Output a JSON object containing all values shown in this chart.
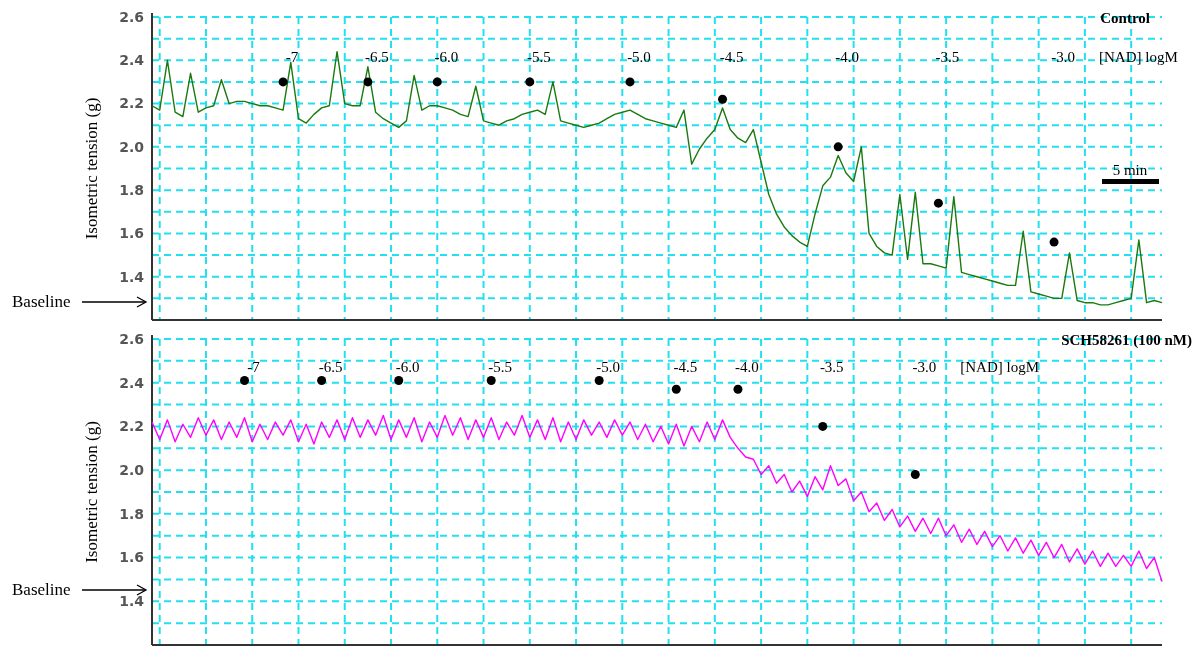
{
  "chart_data": [
    {
      "type": "line",
      "title": "Control",
      "ylabel": "Isometric  tension (g)",
      "categories": [
        null,
        null,
        null,
        null,
        null,
        null,
        null,
        null,
        null,
        null,
        null,
        null,
        null,
        null,
        null,
        null,
        null,
        null,
        null,
        null,
        null,
        null,
        null,
        null,
        null,
        null,
        null,
        null,
        null,
        null,
        null,
        null,
        null,
        null,
        null,
        null,
        null,
        null,
        null,
        null,
        null,
        null,
        null,
        null,
        null,
        null,
        null,
        null,
        null,
        null,
        null,
        null,
        null,
        null,
        null,
        null,
        null,
        null,
        null,
        null,
        null,
        null,
        null,
        null,
        null,
        null,
        null,
        null,
        null,
        null,
        null,
        null,
        null,
        null,
        null,
        null,
        null,
        null,
        null,
        null,
        null,
        null,
        null,
        null,
        null,
        null,
        null,
        null,
        null,
        null,
        null,
        null,
        null,
        null,
        null,
        null,
        null,
        null,
        null,
        null,
        null,
        null,
        null,
        null,
        null,
        null,
        null,
        null,
        null,
        null,
        null,
        null,
        null,
        null,
        null,
        null,
        null,
        null,
        null,
        null,
        null,
        null,
        null,
        null,
        null,
        null,
        null,
        null,
        null,
        null,
        null,
        null
      ],
      "ylim": [
        1.2,
        2.6
      ],
      "yticks": [
        {
          "value": 1.3,
          "label": null
        },
        1.4,
        {
          "value": 1.5,
          "label": null
        },
        1.6,
        {
          "value": 1.7,
          "label": null
        },
        1.8,
        {
          "value": 1.9,
          "label": null
        },
        {
          "value": 2,
          "label": "2.0"
        },
        {
          "value": 2.1,
          "label": null
        },
        2.2,
        {
          "value": 2.3,
          "label": null
        },
        2.4,
        {
          "value": 2.5,
          "label": null
        },
        2.6
      ],
      "grid": true,
      "annotations": [
        "-7",
        "-6.5",
        "-6.0",
        "-5.5",
        "-5.0",
        "-4.5",
        "-4.0",
        "-3.5",
        "-3.0",
        "[NAD] logM",
        "5 min",
        "Baseline"
      ],
      "series": [
        {
          "color": "#1a7a10",
          "values": [
            2.19,
            2.17,
            2.4,
            2.16,
            2.14,
            2.34,
            2.16,
            2.18,
            2.19,
            2.31,
            2.2,
            2.21,
            2.21,
            2.2,
            2.19,
            2.19,
            2.18,
            2.17,
            2.39,
            2.13,
            2.11,
            2.15,
            2.18,
            2.19,
            2.44,
            2.2,
            2.19,
            2.19,
            2.37,
            2.16,
            2.13,
            2.11,
            2.09,
            2.12,
            2.33,
            2.17,
            2.19,
            2.19,
            2.18,
            2.17,
            2.15,
            2.14,
            2.28,
            2.12,
            2.11,
            2.1,
            2.12,
            2.13,
            2.15,
            2.16,
            2.17,
            2.15,
            2.3,
            2.12,
            2.11,
            2.1,
            2.09,
            2.1,
            2.11,
            2.13,
            2.15,
            2.16,
            2.17,
            2.15,
            2.13,
            2.12,
            2.11,
            2.1,
            2.09,
            2.17,
            1.92,
            1.99,
            2.04,
            2.08,
            2.18,
            2.08,
            2.04,
            2.02,
            2.08,
            1.93,
            1.78,
            1.69,
            1.63,
            1.59,
            1.56,
            1.54,
            1.69,
            1.82,
            1.86,
            1.96,
            1.88,
            1.84,
            2.0,
            1.6,
            1.54,
            1.51,
            1.5,
            1.78,
            1.48,
            1.79,
            1.46,
            1.46,
            1.45,
            1.44,
            1.77,
            1.42,
            1.41,
            1.4,
            1.39,
            1.38,
            1.37,
            1.36,
            1.36,
            1.61,
            1.33,
            1.32,
            1.31,
            1.3,
            1.3,
            1.51,
            1.29,
            1.28,
            1.28,
            1.27,
            1.27,
            1.28,
            1.29,
            1.3,
            1.57,
            1.28,
            1.29,
            1.28
          ]
        },
        {
          "type": "scatter",
          "color": "#000000",
          "marker": "circle",
          "values": [
            null,
            null,
            null,
            null,
            null,
            null,
            null,
            null,
            null,
            null,
            null,
            null,
            null,
            null,
            null,
            null,
            null,
            2.3,
            null,
            null,
            null,
            null,
            null,
            null,
            null,
            null,
            null,
            null,
            2.3,
            null,
            null,
            null,
            null,
            null,
            null,
            null,
            null,
            2.3,
            null,
            null,
            null,
            null,
            null,
            null,
            null,
            null,
            null,
            null,
            null,
            2.3,
            null,
            null,
            null,
            null,
            null,
            null,
            null,
            null,
            null,
            null,
            null,
            null,
            2.3,
            null,
            null,
            null,
            null,
            null,
            null,
            null,
            null,
            null,
            null,
            null,
            2.22,
            null,
            null,
            null,
            null,
            null,
            null,
            null,
            null,
            null,
            null,
            null,
            null,
            null,
            null,
            2.0,
            null,
            null,
            null,
            null,
            null,
            null,
            null,
            null,
            null,
            null,
            null,
            null,
            1.74,
            null,
            null,
            null,
            null,
            null,
            null,
            null,
            null,
            null,
            null,
            null,
            null,
            null,
            null,
            1.56,
            null,
            null,
            null,
            null,
            null,
            null,
            null,
            null,
            null,
            null,
            null,
            null,
            null,
            null
          ]
        }
      ]
    },
    {
      "type": "line",
      "title": "SCH58261  (100 nM)",
      "ylabel": "Isometric  tension (g)",
      "categories": [
        null,
        null,
        null,
        null,
        null,
        null,
        null,
        null,
        null,
        null,
        null,
        null,
        null,
        null,
        null,
        null,
        null,
        null,
        null,
        null,
        null,
        null,
        null,
        null,
        null,
        null,
        null,
        null,
        null,
        null,
        null,
        null,
        null,
        null,
        null,
        null,
        null,
        null,
        null,
        null,
        null,
        null,
        null,
        null,
        null,
        null,
        null,
        null,
        null,
        null,
        null,
        null,
        null,
        null,
        null,
        null,
        null,
        null,
        null,
        null,
        null,
        null,
        null,
        null,
        null,
        null,
        null,
        null,
        null,
        null,
        null,
        null,
        null,
        null,
        null,
        null,
        null,
        null,
        null,
        null,
        null,
        null,
        null,
        null,
        null,
        null,
        null,
        null,
        null,
        null,
        null,
        null,
        null,
        null,
        null,
        null,
        null,
        null,
        null,
        null,
        null,
        null,
        null,
        null,
        null,
        null,
        null,
        null,
        null,
        null,
        null,
        null,
        null,
        null,
        null,
        null,
        null,
        null,
        null,
        null,
        null,
        null,
        null,
        null,
        null,
        null,
        null,
        null,
        null,
        null,
        null,
        null
      ],
      "ylim": [
        1.2,
        2.6
      ],
      "yticks": [
        {
          "value": 1.3,
          "label": null
        },
        1.4,
        {
          "value": 1.5,
          "label": null
        },
        1.6,
        {
          "value": 1.7,
          "label": null
        },
        1.8,
        {
          "value": 1.9,
          "label": null
        },
        {
          "value": 2,
          "label": "2.0"
        },
        {
          "value": 2.1,
          "label": null
        },
        2.2,
        {
          "value": 2.3,
          "label": null
        },
        2.4,
        {
          "value": 2.5,
          "label": null
        },
        2.6
      ],
      "grid": true,
      "annotations": [
        "-7",
        "-6.5",
        "-6.0",
        "-5.5",
        "-5.0",
        "-4.5",
        "-4.0",
        "-3.5",
        "-3.0",
        "[NAD] logM",
        "Baseline"
      ],
      "series": [
        {
          "color": "#ff00ff",
          "values": [
            2.22,
            2.14,
            2.23,
            2.13,
            2.21,
            2.15,
            2.24,
            2.16,
            2.23,
            2.14,
            2.22,
            2.15,
            2.24,
            2.13,
            2.21,
            2.14,
            2.22,
            2.16,
            2.23,
            2.13,
            2.21,
            2.12,
            2.22,
            2.15,
            2.23,
            2.14,
            2.24,
            2.15,
            2.23,
            2.16,
            2.25,
            2.14,
            2.23,
            2.15,
            2.24,
            2.13,
            2.22,
            2.15,
            2.25,
            2.16,
            2.24,
            2.14,
            2.23,
            2.15,
            2.24,
            2.14,
            2.22,
            2.16,
            2.25,
            2.15,
            2.23,
            2.14,
            2.24,
            2.13,
            2.22,
            2.14,
            2.23,
            2.16,
            2.22,
            2.15,
            2.23,
            2.16,
            2.22,
            2.14,
            2.21,
            2.13,
            2.2,
            2.12,
            2.21,
            2.11,
            2.2,
            2.13,
            2.22,
            2.14,
            2.23,
            2.15,
            2.1,
            2.06,
            2.05,
            1.98,
            2.02,
            1.94,
            1.98,
            1.9,
            1.95,
            1.88,
            1.97,
            1.91,
            2.02,
            1.93,
            1.96,
            1.86,
            1.9,
            1.81,
            1.85,
            1.77,
            1.82,
            1.74,
            1.79,
            1.72,
            1.78,
            1.71,
            1.78,
            1.7,
            1.75,
            1.67,
            1.73,
            1.66,
            1.72,
            1.65,
            1.7,
            1.63,
            1.69,
            1.62,
            1.68,
            1.61,
            1.67,
            1.6,
            1.66,
            1.58,
            1.64,
            1.57,
            1.63,
            1.56,
            1.62,
            1.56,
            1.61,
            1.56,
            1.63,
            1.55,
            1.6,
            1.49
          ]
        },
        {
          "type": "scatter",
          "color": "#000000",
          "marker": "circle",
          "values": [
            null,
            null,
            null,
            null,
            null,
            null,
            null,
            null,
            null,
            null,
            null,
            null,
            2.41,
            null,
            null,
            null,
            null,
            null,
            null,
            null,
            null,
            null,
            2.41,
            null,
            null,
            null,
            null,
            null,
            null,
            null,
            null,
            null,
            2.41,
            null,
            null,
            null,
            null,
            null,
            null,
            null,
            null,
            null,
            null,
            null,
            2.41,
            null,
            null,
            null,
            null,
            null,
            null,
            null,
            null,
            null,
            null,
            null,
            null,
            null,
            2.41,
            null,
            null,
            null,
            null,
            null,
            null,
            null,
            null,
            null,
            2.37,
            null,
            null,
            null,
            null,
            null,
            null,
            null,
            2.37,
            null,
            null,
            null,
            null,
            null,
            null,
            null,
            null,
            null,
            null,
            2.2,
            null,
            null,
            null,
            null,
            null,
            null,
            null,
            null,
            null,
            null,
            null,
            1.98,
            null,
            null,
            null,
            null,
            null,
            null,
            null,
            null,
            null,
            null,
            null,
            null,
            null,
            null,
            null,
            null,
            null,
            null,
            null,
            null,
            null,
            null,
            null,
            null,
            null,
            null,
            null,
            null,
            null,
            null,
            null,
            null
          ]
        }
      ]
    }
  ]
}
